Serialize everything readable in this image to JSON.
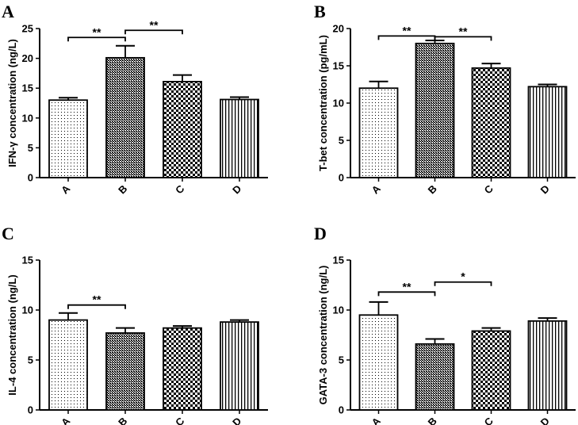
{
  "chart_data": [
    {
      "type": "bar",
      "panel": "A",
      "ylabel": "IFN-γ  concentration (ng/L)",
      "categories": [
        "A",
        "B",
        "C",
        "D"
      ],
      "values": [
        13.0,
        20.1,
        16.1,
        13.1
      ],
      "errors": [
        0.4,
        2.0,
        1.1,
        0.4
      ],
      "ylim": [
        0,
        25
      ],
      "yticks": [
        "0",
        "5",
        "10",
        "15",
        "20",
        "25"
      ],
      "patterns": [
        "dots",
        "dense",
        "checker",
        "vlines"
      ],
      "significance": [
        {
          "from": "A",
          "to": "B",
          "label": "**",
          "y": 23.5
        },
        {
          "from": "B",
          "to": "C",
          "label": "**",
          "y": 24.7
        }
      ]
    },
    {
      "type": "bar",
      "panel": "B",
      "ylabel": "T-bet concentration (pg/mL)",
      "categories": [
        "A",
        "B",
        "C",
        "D"
      ],
      "values": [
        12.0,
        18.0,
        14.7,
        12.2
      ],
      "errors": [
        0.9,
        0.4,
        0.6,
        0.3
      ],
      "ylim": [
        0,
        20
      ],
      "yticks": [
        "0",
        "5",
        "10",
        "15",
        "20"
      ],
      "patterns": [
        "dots",
        "dense",
        "checker",
        "vlines"
      ],
      "significance": [
        {
          "from": "A",
          "to": "B",
          "label": "**",
          "y": 19.0
        },
        {
          "from": "B",
          "to": "C",
          "label": "**",
          "y": 18.9
        }
      ]
    },
    {
      "type": "bar",
      "panel": "C",
      "ylabel": "IL-4 concentration (ng/L)",
      "categories": [
        "A",
        "B",
        "C",
        "D"
      ],
      "values": [
        9.0,
        7.7,
        8.2,
        8.8
      ],
      "errors": [
        0.7,
        0.5,
        0.2,
        0.2
      ],
      "ylim": [
        0,
        15
      ],
      "yticks": [
        "0",
        "5",
        "10",
        "15"
      ],
      "patterns": [
        "dots",
        "dense",
        "checker",
        "vlines"
      ],
      "significance": [
        {
          "from": "A",
          "to": "B",
          "label": "**",
          "y": 10.5
        }
      ]
    },
    {
      "type": "bar",
      "panel": "D",
      "ylabel": "GATA-3 concentration (ng/L)",
      "categories": [
        "A",
        "B",
        "C",
        "D"
      ],
      "values": [
        9.5,
        6.6,
        7.9,
        8.9
      ],
      "errors": [
        1.3,
        0.5,
        0.3,
        0.3
      ],
      "ylim": [
        0,
        15
      ],
      "yticks": [
        "0",
        "5",
        "10",
        "15"
      ],
      "patterns": [
        "dots",
        "dense",
        "checker",
        "vlines"
      ],
      "significance": [
        {
          "from": "A",
          "to": "B",
          "label": "**",
          "y": 11.8
        },
        {
          "from": "B",
          "to": "C",
          "label": "*",
          "y": 12.8
        }
      ]
    }
  ]
}
